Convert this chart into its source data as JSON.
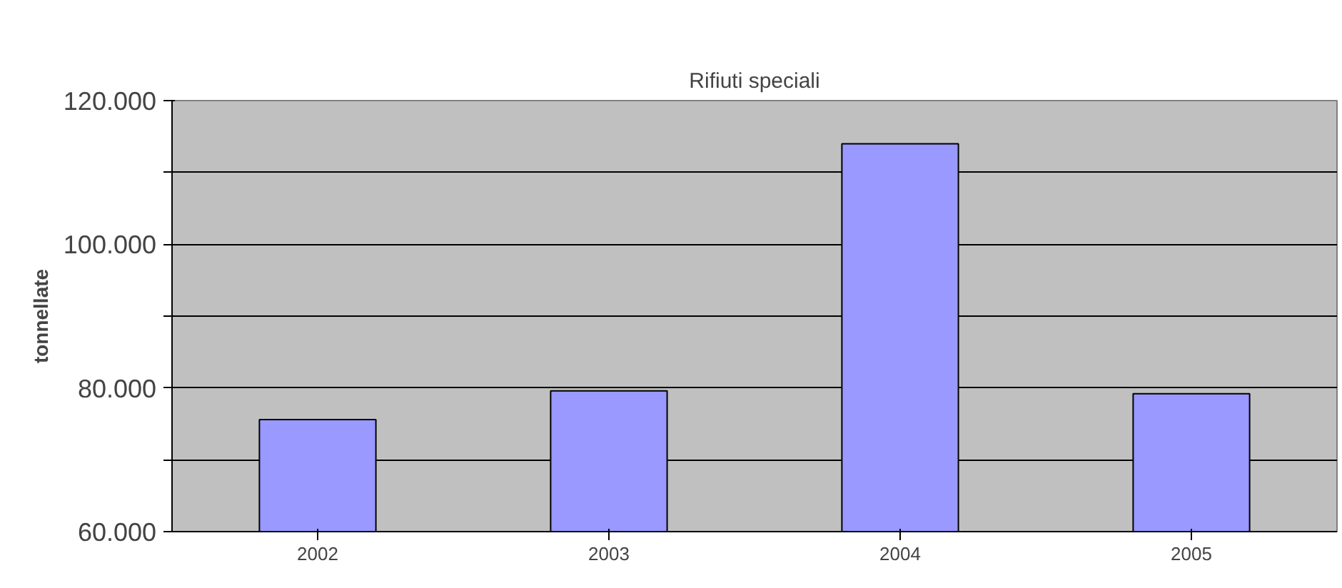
{
  "chart_data": {
    "type": "bar",
    "title": "Rifiuti speciali",
    "ylabel": "tonnellate",
    "categories": [
      "2002",
      "2003",
      "2004",
      "2005"
    ],
    "series": [
      {
        "color": "#9999ff",
        "values": [
          75600,
          79600,
          114000,
          79200
        ]
      }
    ],
    "ylim": [
      60000,
      120000
    ],
    "yticks": [
      {
        "value": 60000,
        "label": "60.000"
      },
      {
        "value": 70000,
        "label": null
      },
      {
        "value": 80000,
        "label": "80.000"
      },
      {
        "value": 90000,
        "label": null
      },
      {
        "value": 100000,
        "label": "100.000"
      },
      {
        "value": 110000,
        "label": null
      },
      {
        "value": 120000,
        "label": "120.000"
      }
    ],
    "grid": "y"
  }
}
